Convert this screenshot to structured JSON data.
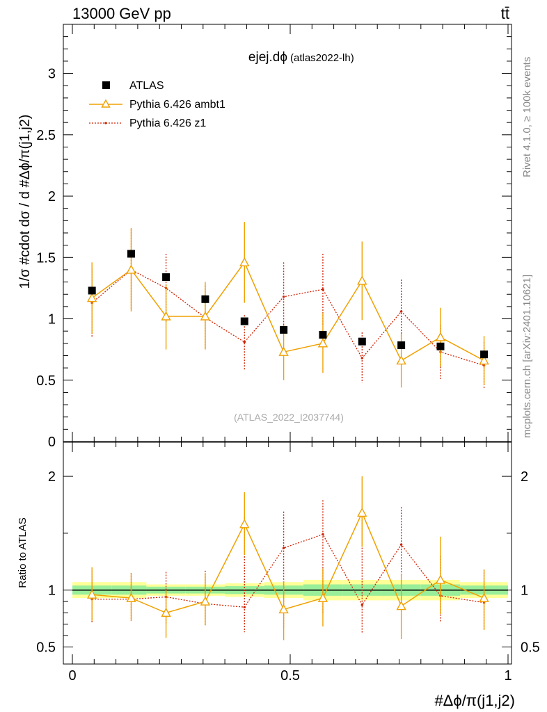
{
  "header": {
    "energy_label": "13000 GeV pp",
    "process_label": "tt̄",
    "rivet_label": "Rivet 4.1.0, ≥ 100k events",
    "mcplots_label": "mcplots.cern.ch [arXiv:2401.10621]",
    "analysis_id": "(ATLAS_2022_I2037744)"
  },
  "chart_data": [
    {
      "type": "scatter",
      "panel": "main",
      "title": "ejej.dϕ",
      "subtitle": "(atlas2022-lh)",
      "ylabel": "1/σ #cdot dσ / d #Δϕ/π(j1,j2)",
      "ylim": [
        0,
        3.4
      ],
      "yticks": [
        0,
        0.5,
        1,
        1.5,
        2,
        2.5,
        3
      ],
      "ytick_labels": [
        "0",
        "0.5",
        "1",
        "1.5",
        "2",
        "2.5",
        "3"
      ],
      "xlim": [
        0,
        1
      ],
      "x": [
        0.045,
        0.135,
        0.215,
        0.305,
        0.395,
        0.485,
        0.575,
        0.665,
        0.755,
        0.845,
        0.945
      ],
      "legend": [
        {
          "name": "ATLAS",
          "style": "data"
        },
        {
          "name": "Pythia 6.426 ambt1",
          "style": "ambt1"
        },
        {
          "name": "Pythia 6.426 z1",
          "style": "z1"
        }
      ],
      "series": [
        {
          "name": "ATLAS",
          "color": "#000000",
          "values": [
            1.23,
            1.53,
            1.34,
            1.16,
            0.98,
            0.91,
            0.87,
            0.815,
            0.785,
            0.775,
            0.71
          ]
        },
        {
          "name": "Pythia 6.426 ambt1",
          "color": "#f0a000",
          "values": [
            1.17,
            1.4,
            1.02,
            1.02,
            1.46,
            0.73,
            0.8,
            1.31,
            0.66,
            0.85,
            0.66
          ],
          "err_up": [
            0.29,
            0.34,
            0.26,
            0.28,
            0.33,
            0.22,
            0.25,
            0.32,
            0.22,
            0.24,
            0.2
          ],
          "err_down": [
            0.29,
            0.34,
            0.27,
            0.27,
            0.33,
            0.23,
            0.24,
            0.32,
            0.22,
            0.24,
            0.2
          ]
        },
        {
          "name": "Pythia 6.426 z1",
          "color": "#d02000",
          "values": [
            1.13,
            1.4,
            1.25,
            1.01,
            0.81,
            1.18,
            1.24,
            0.68,
            1.06,
            0.73,
            0.62
          ],
          "err_up": [
            0.28,
            0.33,
            0.28,
            0.26,
            0.22,
            0.28,
            0.29,
            0.21,
            0.26,
            0.22,
            0.19
          ],
          "err_down": [
            0.28,
            0.33,
            0.28,
            0.26,
            0.23,
            0.28,
            0.29,
            0.2,
            0.26,
            0.22,
            0.19
          ]
        }
      ]
    },
    {
      "type": "scatter",
      "panel": "ratio",
      "ylabel": "Ratio to ATLAS",
      "ylim": [
        0.35,
        2.3
      ],
      "yticks": [
        0.5,
        1,
        2
      ],
      "ytick_labels": [
        "0.5",
        "1",
        "2"
      ],
      "xlim": [
        0,
        1
      ],
      "xticks": [
        0,
        0.5,
        1
      ],
      "xtick_labels": [
        "0",
        "0.5",
        "1"
      ],
      "xlabel": "#Δϕ/π(j1,j2)",
      "x": [
        0.045,
        0.135,
        0.215,
        0.305,
        0.395,
        0.485,
        0.575,
        0.665,
        0.755,
        0.845,
        0.945
      ],
      "bin_edges": [
        0,
        0.09,
        0.17,
        0.26,
        0.35,
        0.44,
        0.53,
        0.62,
        0.71,
        0.8,
        0.89,
        1.0
      ],
      "band_inner": [
        0.04,
        0.04,
        0.03,
        0.03,
        0.035,
        0.04,
        0.05,
        0.05,
        0.05,
        0.05,
        0.04
      ],
      "band_outer": [
        0.07,
        0.07,
        0.05,
        0.05,
        0.06,
        0.07,
        0.09,
        0.09,
        0.09,
        0.09,
        0.07
      ],
      "series": [
        {
          "name": "Pythia 6.426 ambt1",
          "color": "#f0a000",
          "values": [
            0.96,
            0.93,
            0.8,
            0.9,
            1.58,
            0.83,
            0.93,
            1.68,
            0.86,
            1.09,
            0.93
          ],
          "err_up": [
            0.24,
            0.22,
            0.2,
            0.25,
            0.28,
            0.25,
            0.26,
            0.32,
            0.28,
            0.38,
            0.25
          ],
          "err_down": [
            0.23,
            0.2,
            0.22,
            0.21,
            0.27,
            0.27,
            0.25,
            0.3,
            0.29,
            0.3,
            0.28
          ]
        },
        {
          "name": "Pythia 6.426 z1",
          "color": "#d02000",
          "values": [
            0.92,
            0.92,
            0.94,
            0.88,
            0.85,
            1.37,
            1.49,
            0.87,
            1.4,
            0.95,
            0.89
          ],
          "err_up": [
            0.25,
            0.23,
            0.22,
            0.29,
            0.79,
            0.32,
            0.3,
            0.87,
            0.33,
            0.35,
            0.29
          ],
          "err_down": [
            0.21,
            0.19,
            0.24,
            0.2,
            0.22,
            0.71,
            0.7,
            0.25,
            0.27,
            0.23,
            0.24
          ]
        }
      ]
    }
  ]
}
